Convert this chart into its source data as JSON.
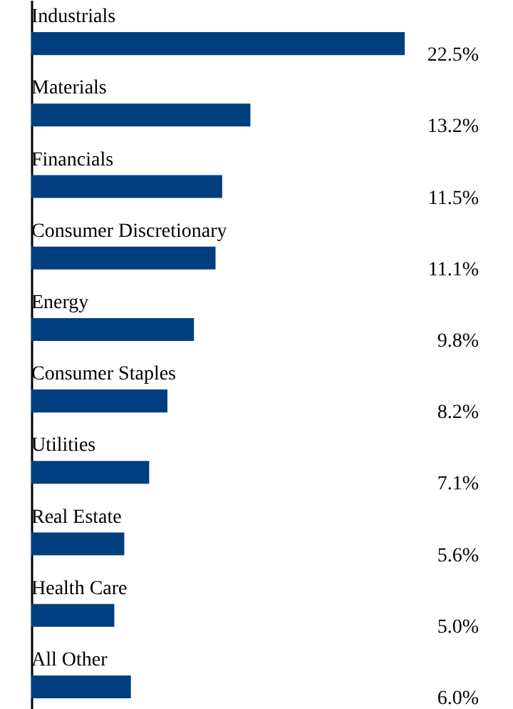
{
  "chart_data": {
    "type": "bar",
    "orientation": "horizontal",
    "categories": [
      "Industrials",
      "Materials",
      "Financials",
      "Consumer Discretionary",
      "Energy",
      "Consumer Staples",
      "Utilities",
      "Real Estate",
      "Health Care",
      "All Other"
    ],
    "values": [
      22.5,
      13.2,
      11.5,
      11.1,
      9.8,
      8.2,
      7.1,
      5.6,
      5.0,
      6.0
    ],
    "value_labels": [
      "22.5%",
      "13.2%",
      "11.5%",
      "11.1%",
      "9.8%",
      "8.2%",
      "7.1%",
      "5.6%",
      "5.0%",
      "6.0%"
    ],
    "color": "#003f7f"
  }
}
